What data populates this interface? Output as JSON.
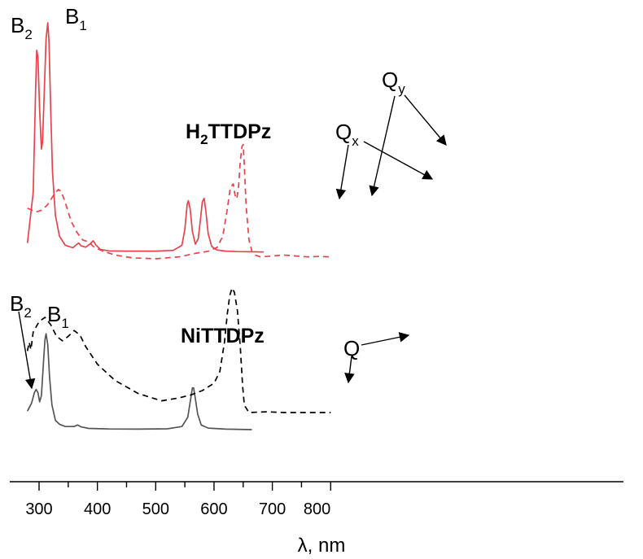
{
  "chart_data": {
    "type": "line",
    "title": "",
    "xlabel": "λ, nm",
    "ylabel": "",
    "xlim": [
      275,
      800
    ],
    "x_ticks": [
      "300",
      "400",
      "500",
      "600",
      "700",
      "800"
    ],
    "grid": false,
    "legend": "none",
    "series": [
      {
        "compound": "H2TTDPz",
        "style": "solid",
        "color": "#e8434a",
        "x": [
          280,
          290,
          294,
          296,
          298,
          301,
          304,
          306,
          309,
          312,
          315,
          317,
          320,
          323,
          328,
          335,
          345,
          358,
          365,
          368,
          372,
          380,
          387,
          393,
          397,
          405,
          420,
          450,
          500,
          530,
          545,
          550,
          554,
          556,
          559,
          563,
          568,
          573,
          577,
          580,
          583,
          586,
          590,
          596,
          605,
          620,
          640,
          660,
          685
        ],
        "y": [
          0.04,
          0.26,
          0.7,
          0.88,
          0.85,
          0.62,
          0.45,
          0.48,
          0.7,
          0.93,
          1.0,
          0.92,
          0.62,
          0.35,
          0.16,
          0.07,
          0.03,
          0.02,
          0.035,
          0.04,
          0.028,
          0.022,
          0.035,
          0.05,
          0.033,
          0.012,
          0.006,
          0.005,
          0.005,
          0.008,
          0.03,
          0.1,
          0.21,
          0.225,
          0.19,
          0.09,
          0.035,
          0.06,
          0.15,
          0.22,
          0.235,
          0.18,
          0.08,
          0.025,
          0.01,
          0.005,
          0.003,
          0.002,
          0.001
        ]
      },
      {
        "compound": "H2TTDPz",
        "style": "dashed",
        "color": "#e8434a",
        "x": [
          280,
          295,
          305,
          315,
          325,
          333,
          338,
          345,
          355,
          365,
          375,
          385,
          395,
          410,
          430,
          460,
          500,
          540,
          570,
          590,
          605,
          615,
          622,
          628,
          633,
          636,
          639,
          642,
          645,
          648,
          650,
          652,
          655,
          660,
          665,
          670,
          680,
          700,
          720,
          740,
          760,
          780,
          800
        ],
        "y": [
          0.27,
          0.25,
          0.26,
          0.29,
          0.34,
          0.37,
          0.36,
          0.3,
          0.2,
          0.14,
          0.1,
          0.09,
          0.06,
          0.04,
          0.02,
          0.005,
          0.0,
          0.01,
          0.03,
          0.04,
          0.06,
          0.12,
          0.25,
          0.38,
          0.4,
          0.34,
          0.32,
          0.38,
          0.52,
          0.6,
          0.61,
          0.5,
          0.28,
          0.1,
          0.04,
          0.02,
          0.01,
          0.015,
          0.02,
          0.015,
          0.01,
          0.012,
          0.01
        ]
      },
      {
        "compound": "NiTTDPz",
        "style": "solid",
        "color": "#555555",
        "x": [
          280,
          287,
          292,
          295,
          298,
          301,
          304,
          307,
          310,
          312,
          315,
          318,
          322,
          328,
          335,
          345,
          360,
          366,
          372,
          385,
          420,
          470,
          520,
          545,
          555,
          560,
          563,
          565,
          568,
          572,
          578,
          590,
          620,
          665
        ],
        "y": [
          0.12,
          0.17,
          0.24,
          0.26,
          0.24,
          0.18,
          0.22,
          0.4,
          0.58,
          0.62,
          0.55,
          0.34,
          0.16,
          0.06,
          0.035,
          0.02,
          0.02,
          0.03,
          0.018,
          0.008,
          0.004,
          0.003,
          0.005,
          0.02,
          0.08,
          0.2,
          0.27,
          0.27,
          0.2,
          0.1,
          0.03,
          0.01,
          0.003,
          0.0
        ]
      },
      {
        "compound": "NiTTDPz",
        "style": "dashed",
        "color": "#000000",
        "x": [
          280,
          283,
          286,
          290,
          300,
          310,
          320,
          330,
          340,
          350,
          360,
          370,
          380,
          400,
          430,
          470,
          510,
          540,
          560,
          580,
          600,
          610,
          618,
          623,
          627,
          631,
          635,
          640,
          645,
          649,
          652,
          660,
          690,
          720,
          760,
          800
        ],
        "y": [
          0.42,
          0.48,
          0.43,
          0.55,
          0.62,
          0.65,
          0.6,
          0.52,
          0.49,
          0.52,
          0.56,
          0.53,
          0.45,
          0.33,
          0.22,
          0.13,
          0.08,
          0.1,
          0.12,
          0.15,
          0.2,
          0.28,
          0.48,
          0.68,
          0.8,
          0.85,
          0.82,
          0.7,
          0.45,
          0.18,
          0.05,
          0.0,
          0.005,
          0.0,
          0.0,
          0.0
        ]
      }
    ],
    "annotations": {
      "h2_compound": {
        "base": "H",
        "sub": "2",
        "rest": "TTDPz"
      },
      "ni_compound": "NiTTDPz",
      "h2_b2": {
        "base": "B",
        "sub": "2"
      },
      "h2_b1": {
        "base": "B",
        "sub": "1"
      },
      "qx": {
        "base": "Q",
        "sub": "x"
      },
      "qy": {
        "base": "Q",
        "sub": "y"
      },
      "ni_b2": {
        "base": "B",
        "sub": "2"
      },
      "ni_b1": {
        "base": "B",
        "sub": "1"
      },
      "ni_q": "Q"
    }
  }
}
